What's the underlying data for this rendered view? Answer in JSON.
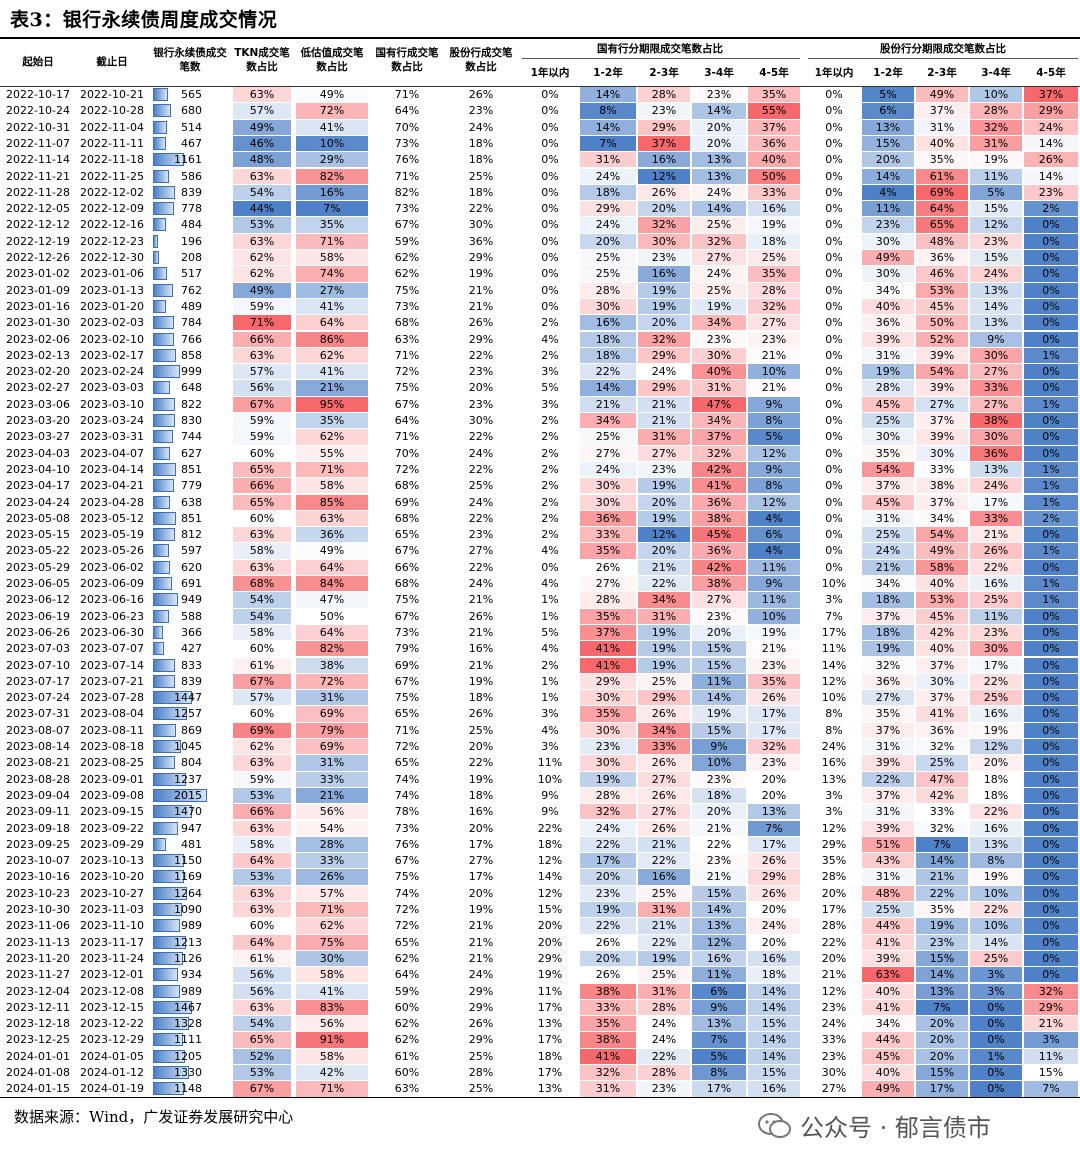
{
  "title": "表3：银行永续债周度成交情况",
  "headers": {
    "start": "起始日",
    "end": "截止日",
    "volume": "银行永续债成交笔数",
    "tkn": "TKN成交笔数占比",
    "low": "低估值成交笔数占比",
    "soe": "国有行成交笔数占比",
    "jsb": "股份行成交笔数占比",
    "soe_group": "国有行分期限成交笔数占比",
    "jsb_group": "股份行分期限成交笔数占比",
    "terms": [
      "1年以内",
      "1-2年",
      "2-3年",
      "3-4年",
      "4-5年"
    ]
  },
  "source": "数据来源：Wind，广发证券发展研究中心",
  "watermark": "公众号 · 郁言债市",
  "rows": [
    [
      "2022-10-17",
      "2022-10-21",
      565,
      63,
      49,
      71,
      26,
      0,
      14,
      28,
      23,
      35,
      0,
      5,
      49,
      10,
      37
    ],
    [
      "2022-10-24",
      "2022-10-28",
      680,
      57,
      72,
      64,
      23,
      0,
      8,
      23,
      14,
      55,
      0,
      6,
      37,
      28,
      29
    ],
    [
      "2022-10-31",
      "2022-11-04",
      514,
      49,
      41,
      70,
      24,
      0,
      14,
      29,
      20,
      37,
      0,
      13,
      31,
      32,
      24
    ],
    [
      "2022-11-07",
      "2022-11-11",
      467,
      46,
      10,
      73,
      18,
      0,
      7,
      37,
      20,
      36,
      0,
      15,
      40,
      31,
      14
    ],
    [
      "2022-11-14",
      "2022-11-18",
      1161,
      48,
      29,
      76,
      18,
      0,
      31,
      16,
      13,
      40,
      0,
      20,
      35,
      19,
      26
    ],
    [
      "2022-11-21",
      "2022-11-25",
      586,
      63,
      82,
      71,
      25,
      0,
      24,
      12,
      13,
      50,
      0,
      14,
      61,
      11,
      14
    ],
    [
      "2022-11-28",
      "2022-12-02",
      839,
      54,
      16,
      82,
      18,
      0,
      18,
      26,
      24,
      33,
      0,
      4,
      69,
      5,
      23
    ],
    [
      "2022-12-05",
      "2022-12-09",
      778,
      44,
      7,
      73,
      22,
      0,
      29,
      20,
      14,
      16,
      0,
      11,
      64,
      15,
      2
    ],
    [
      "2022-12-12",
      "2022-12-16",
      484,
      53,
      35,
      67,
      30,
      0,
      24,
      32,
      25,
      19,
      0,
      23,
      65,
      12,
      0
    ],
    [
      "2022-12-19",
      "2022-12-23",
      196,
      63,
      71,
      59,
      36,
      0,
      20,
      30,
      32,
      18,
      0,
      30,
      48,
      23,
      0
    ],
    [
      "2022-12-26",
      "2022-12-30",
      208,
      62,
      58,
      62,
      29,
      0,
      25,
      23,
      27,
      25,
      0,
      49,
      36,
      15,
      0
    ],
    [
      "2023-01-02",
      "2023-01-06",
      517,
      62,
      74,
      62,
      19,
      0,
      25,
      16,
      24,
      35,
      0,
      30,
      46,
      24,
      0
    ],
    [
      "2023-01-09",
      "2023-01-13",
      762,
      49,
      27,
      75,
      21,
      0,
      28,
      19,
      25,
      28,
      0,
      34,
      53,
      13,
      0
    ],
    [
      "2023-01-16",
      "2023-01-20",
      489,
      59,
      41,
      73,
      21,
      0,
      30,
      19,
      19,
      32,
      0,
      40,
      45,
      14,
      0
    ],
    [
      "2023-01-30",
      "2023-02-03",
      784,
      71,
      64,
      68,
      26,
      2,
      16,
      20,
      34,
      27,
      0,
      36,
      50,
      13,
      0
    ],
    [
      "2023-02-06",
      "2023-02-10",
      766,
      66,
      86,
      63,
      29,
      4,
      18,
      32,
      23,
      23,
      0,
      39,
      52,
      9,
      0
    ],
    [
      "2023-02-13",
      "2023-02-17",
      858,
      63,
      62,
      71,
      22,
      2,
      18,
      29,
      30,
      21,
      0,
      31,
      39,
      30,
      1
    ],
    [
      "2023-02-20",
      "2023-02-24",
      999,
      57,
      41,
      72,
      23,
      3,
      22,
      24,
      40,
      10,
      0,
      19,
      54,
      27,
      0
    ],
    [
      "2023-02-27",
      "2023-03-03",
      648,
      56,
      21,
      75,
      20,
      5,
      14,
      29,
      31,
      21,
      0,
      28,
      39,
      33,
      0
    ],
    [
      "2023-03-06",
      "2023-03-10",
      822,
      67,
      95,
      67,
      23,
      3,
      21,
      21,
      47,
      9,
      0,
      45,
      27,
      27,
      1
    ],
    [
      "2023-03-20",
      "2023-03-24",
      830,
      59,
      35,
      64,
      30,
      2,
      34,
      21,
      34,
      8,
      0,
      25,
      37,
      38,
      0
    ],
    [
      "2023-03-27",
      "2023-03-31",
      744,
      59,
      62,
      71,
      22,
      2,
      25,
      31,
      37,
      5,
      0,
      30,
      39,
      30,
      0
    ],
    [
      "2023-04-03",
      "2023-04-07",
      627,
      60,
      55,
      70,
      24,
      2,
      27,
      27,
      32,
      12,
      0,
      35,
      30,
      36,
      0
    ],
    [
      "2023-04-10",
      "2023-04-14",
      851,
      65,
      71,
      72,
      22,
      2,
      24,
      23,
      42,
      9,
      0,
      54,
      33,
      13,
      1
    ],
    [
      "2023-04-17",
      "2023-04-21",
      779,
      66,
      58,
      68,
      25,
      2,
      30,
      19,
      41,
      8,
      0,
      37,
      38,
      24,
      1
    ],
    [
      "2023-04-24",
      "2023-04-28",
      638,
      65,
      85,
      69,
      24,
      2,
      30,
      20,
      36,
      12,
      0,
      45,
      37,
      17,
      1
    ],
    [
      "2023-05-08",
      "2023-05-12",
      851,
      60,
      63,
      68,
      22,
      2,
      36,
      19,
      38,
      4,
      0,
      31,
      34,
      33,
      2
    ],
    [
      "2023-05-15",
      "2023-05-19",
      812,
      63,
      36,
      65,
      23,
      2,
      33,
      12,
      45,
      6,
      0,
      25,
      54,
      21,
      0
    ],
    [
      "2023-05-22",
      "2023-05-26",
      597,
      58,
      49,
      67,
      27,
      4,
      35,
      20,
      36,
      4,
      0,
      24,
      49,
      26,
      1
    ],
    [
      "2023-05-29",
      "2023-06-02",
      620,
      63,
      64,
      66,
      22,
      0,
      26,
      21,
      42,
      11,
      0,
      21,
      58,
      22,
      0
    ],
    [
      "2023-06-05",
      "2023-06-09",
      691,
      68,
      84,
      68,
      24,
      4,
      27,
      22,
      38,
      9,
      10,
      34,
      40,
      16,
      1
    ],
    [
      "2023-06-12",
      "2023-06-16",
      949,
      54,
      47,
      75,
      21,
      1,
      28,
      34,
      27,
      11,
      3,
      18,
      53,
      25,
      1
    ],
    [
      "2023-06-19",
      "2023-06-23",
      588,
      54,
      50,
      67,
      26,
      1,
      35,
      31,
      23,
      10,
      7,
      37,
      45,
      11,
      0
    ],
    [
      "2023-06-26",
      "2023-06-30",
      366,
      58,
      64,
      73,
      21,
      5,
      37,
      19,
      20,
      19,
      17,
      18,
      42,
      23,
      0
    ],
    [
      "2023-07-03",
      "2023-07-07",
      427,
      60,
      82,
      79,
      16,
      4,
      41,
      19,
      15,
      21,
      11,
      19,
      40,
      30,
      0
    ],
    [
      "2023-07-10",
      "2023-07-14",
      833,
      61,
      38,
      69,
      21,
      2,
      41,
      19,
      15,
      23,
      14,
      32,
      37,
      17,
      0
    ],
    [
      "2023-07-17",
      "2023-07-21",
      839,
      67,
      72,
      67,
      19,
      1,
      29,
      25,
      11,
      35,
      12,
      36,
      30,
      22,
      0
    ],
    [
      "2023-07-24",
      "2023-07-28",
      1447,
      57,
      31,
      75,
      18,
      1,
      30,
      29,
      14,
      26,
      10,
      27,
      37,
      25,
      0
    ],
    [
      "2023-07-31",
      "2023-08-04",
      1257,
      60,
      69,
      65,
      26,
      3,
      35,
      26,
      19,
      17,
      8,
      35,
      41,
      16,
      0
    ],
    [
      "2023-08-07",
      "2023-08-11",
      869,
      69,
      79,
      71,
      25,
      4,
      30,
      34,
      15,
      17,
      8,
      37,
      36,
      19,
      0
    ],
    [
      "2023-08-14",
      "2023-08-18",
      1045,
      62,
      69,
      72,
      20,
      3,
      23,
      33,
      9,
      32,
      24,
      31,
      32,
      12,
      0
    ],
    [
      "2023-08-21",
      "2023-08-25",
      804,
      63,
      31,
      65,
      22,
      11,
      30,
      26,
      10,
      23,
      16,
      39,
      25,
      20,
      0
    ],
    [
      "2023-08-28",
      "2023-09-01",
      1237,
      59,
      33,
      74,
      19,
      10,
      19,
      27,
      23,
      20,
      13,
      22,
      47,
      18,
      0
    ],
    [
      "2023-09-04",
      "2023-09-08",
      2015,
      53,
      21,
      74,
      18,
      9,
      28,
      26,
      18,
      20,
      3,
      37,
      42,
      18,
      0
    ],
    [
      "2023-09-11",
      "2023-09-15",
      1470,
      66,
      56,
      78,
      16,
      9,
      32,
      27,
      20,
      13,
      3,
      31,
      33,
      22,
      0
    ],
    [
      "2023-09-18",
      "2023-09-22",
      947,
      63,
      54,
      73,
      20,
      22,
      24,
      26,
      21,
      7,
      12,
      39,
      32,
      16,
      0
    ],
    [
      "2023-09-25",
      "2023-09-29",
      481,
      58,
      28,
      76,
      17,
      18,
      22,
      21,
      22,
      17,
      29,
      51,
      7,
      13,
      0
    ],
    [
      "2023-10-07",
      "2023-10-13",
      1150,
      64,
      33,
      67,
      27,
      12,
      17,
      22,
      23,
      26,
      35,
      43,
      14,
      8,
      0
    ],
    [
      "2023-10-16",
      "2023-10-20",
      1169,
      53,
      26,
      75,
      17,
      14,
      20,
      16,
      21,
      29,
      28,
      31,
      21,
      19,
      0
    ],
    [
      "2023-10-23",
      "2023-10-27",
      1264,
      63,
      57,
      74,
      20,
      12,
      23,
      25,
      15,
      26,
      20,
      48,
      22,
      10,
      0
    ],
    [
      "2023-10-30",
      "2023-11-03",
      1090,
      63,
      71,
      72,
      19,
      15,
      19,
      31,
      14,
      20,
      17,
      25,
      35,
      22,
      0
    ],
    [
      "2023-11-06",
      "2023-11-10",
      989,
      60,
      62,
      72,
      21,
      20,
      22,
      21,
      13,
      24,
      28,
      44,
      19,
      10,
      0
    ],
    [
      "2023-11-13",
      "2023-11-17",
      1213,
      64,
      75,
      65,
      21,
      20,
      26,
      22,
      12,
      20,
      22,
      41,
      23,
      14,
      0
    ],
    [
      "2023-11-20",
      "2023-11-24",
      1126,
      61,
      30,
      62,
      21,
      29,
      20,
      19,
      16,
      16,
      20,
      39,
      15,
      25,
      0
    ],
    [
      "2023-11-27",
      "2023-12-01",
      934,
      56,
      58,
      64,
      24,
      19,
      26,
      25,
      11,
      18,
      21,
      63,
      14,
      3,
      0
    ],
    [
      "2023-12-04",
      "2023-12-08",
      989,
      56,
      41,
      59,
      29,
      11,
      38,
      31,
      6,
      14,
      12,
      40,
      13,
      3,
      32
    ],
    [
      "2023-12-11",
      "2023-12-15",
      1467,
      63,
      83,
      60,
      29,
      17,
      33,
      28,
      9,
      14,
      23,
      41,
      7,
      0,
      29
    ],
    [
      "2023-12-18",
      "2023-12-22",
      1328,
      54,
      56,
      62,
      26,
      13,
      35,
      24,
      13,
      15,
      24,
      34,
      20,
      0,
      21
    ],
    [
      "2023-12-25",
      "2023-12-29",
      1111,
      65,
      91,
      62,
      29,
      17,
      38,
      24,
      7,
      14,
      33,
      44,
      20,
      0,
      3
    ],
    [
      "2024-01-01",
      "2024-01-05",
      1205,
      52,
      58,
      61,
      25,
      18,
      41,
      22,
      5,
      14,
      23,
      45,
      20,
      1,
      11
    ],
    [
      "2024-01-08",
      "2024-01-12",
      1330,
      53,
      42,
      60,
      28,
      17,
      32,
      28,
      8,
      15,
      30,
      40,
      15,
      0,
      15
    ],
    [
      "2024-01-15",
      "2024-01-19",
      1148,
      67,
      71,
      63,
      25,
      13,
      31,
      23,
      17,
      16,
      27,
      49,
      17,
      0,
      7
    ]
  ]
}
